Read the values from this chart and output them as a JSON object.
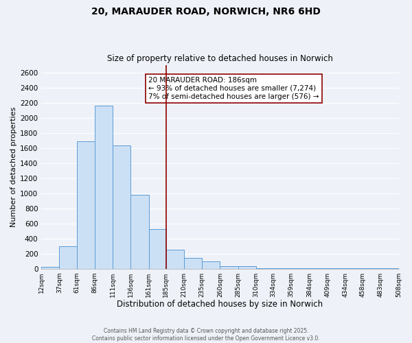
{
  "title": "20, MARAUDER ROAD, NORWICH, NR6 6HD",
  "subtitle": "Size of property relative to detached houses in Norwich",
  "xlabel": "Distribution of detached houses by size in Norwich",
  "ylabel": "Number of detached properties",
  "bin_edges": [
    12,
    37,
    61,
    86,
    111,
    136,
    161,
    185,
    210,
    235,
    260,
    285,
    310,
    334,
    359,
    384,
    409,
    434,
    458,
    483,
    508
  ],
  "counts": [
    20,
    295,
    1690,
    2160,
    1630,
    980,
    520,
    250,
    140,
    100,
    35,
    35,
    5,
    5,
    5,
    5,
    5,
    5,
    5,
    5
  ],
  "bar_color": "#cce0f5",
  "bar_edge_color": "#5b9bd5",
  "vline_x": 185,
  "vline_color": "#8B0000",
  "annotation_text": "20 MARAUDER ROAD: 186sqm\n← 93% of detached houses are smaller (7,274)\n7% of semi-detached houses are larger (576) →",
  "annotation_box_color": "#ffffff",
  "annotation_box_edge": "#8B0000",
  "tick_labels": [
    "12sqm",
    "37sqm",
    "61sqm",
    "86sqm",
    "111sqm",
    "136sqm",
    "161sqm",
    "185sqm",
    "210sqm",
    "235sqm",
    "260sqm",
    "285sqm",
    "310sqm",
    "334sqm",
    "359sqm",
    "384sqm",
    "409sqm",
    "434sqm",
    "458sqm",
    "483sqm",
    "508sqm"
  ],
  "ylim": [
    0,
    2700
  ],
  "yticks": [
    0,
    200,
    400,
    600,
    800,
    1000,
    1200,
    1400,
    1600,
    1800,
    2000,
    2200,
    2400,
    2600
  ],
  "footer_line1": "Contains HM Land Registry data © Crown copyright and database right 2025.",
  "footer_line2": "Contains public sector information licensed under the Open Government Licence v3.0.",
  "bg_color": "#eef2f8",
  "grid_color": "#ffffff"
}
